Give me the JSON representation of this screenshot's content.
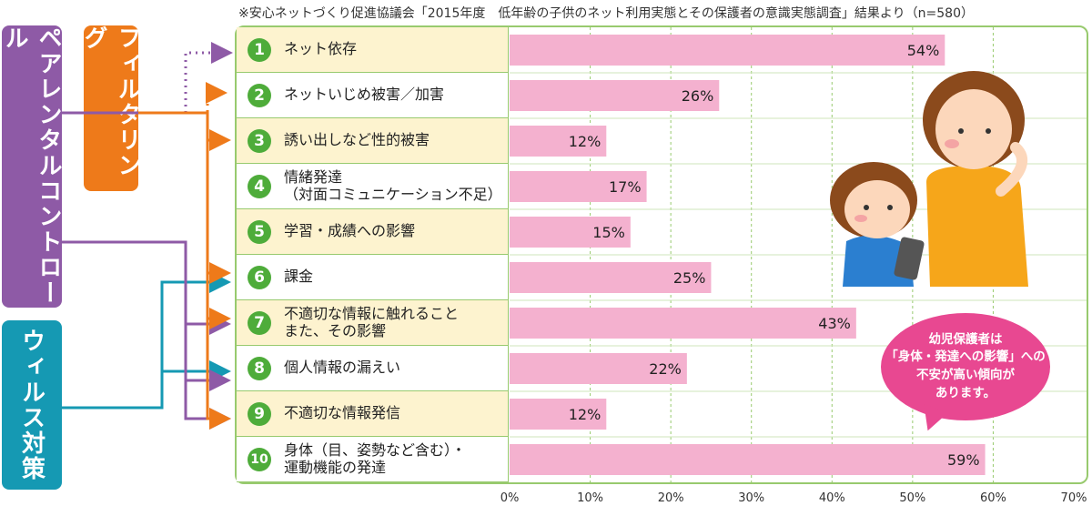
{
  "source_note": "※安心ネットづくり促進協議会「2015年度　低年齢の子供のネット利用実態とその保護者の意識実態調査」結果より（n=580）",
  "side_labels": {
    "parental_control": "ペアレンタルコントロール",
    "filtering": "フィルタリング",
    "virus": "ウィルス対策"
  },
  "bubble_text": "幼児保護者は\n「身体・発達への影響」への\n不安が高い傾向が\nあります。",
  "colors": {
    "bar": "#f4b1cf",
    "badge": "#4eac3a",
    "panel_border": "#98ca6e",
    "parental": "#8e5aa6",
    "filtering": "#ee7a1a",
    "virus": "#1599b3",
    "bubble": "#e84891"
  },
  "chart_data": {
    "type": "bar",
    "orientation": "horizontal",
    "categories": [
      "ネット依存",
      "ネットいじめ被害／加害",
      "誘い出しなど性的被害",
      "情緒発達\n（対面コミュニケーション不足）",
      "学習・成績への影響",
      "課金",
      "不適切な情報に触れること\nまた、その影響",
      "個人情報の漏えい",
      "不適切な情報発信",
      "身体（目、姿勢など含む）・\n運動機能の発達"
    ],
    "numbers": [
      "1",
      "2",
      "3",
      "4",
      "5",
      "6",
      "7",
      "8",
      "9",
      "10"
    ],
    "values": [
      54,
      26,
      12,
      17,
      15,
      25,
      43,
      22,
      12,
      59
    ],
    "value_labels": [
      "54%",
      "26%",
      "12%",
      "17%",
      "15%",
      "25%",
      "43%",
      "22%",
      "12%",
      "59%"
    ],
    "xlim": [
      0,
      70
    ],
    "x_ticks": [
      "0%",
      "10%",
      "20%",
      "30%",
      "40%",
      "50%",
      "60%",
      "70%"
    ],
    "grid": true,
    "title": "",
    "xlabel": "",
    "ylabel": ""
  }
}
